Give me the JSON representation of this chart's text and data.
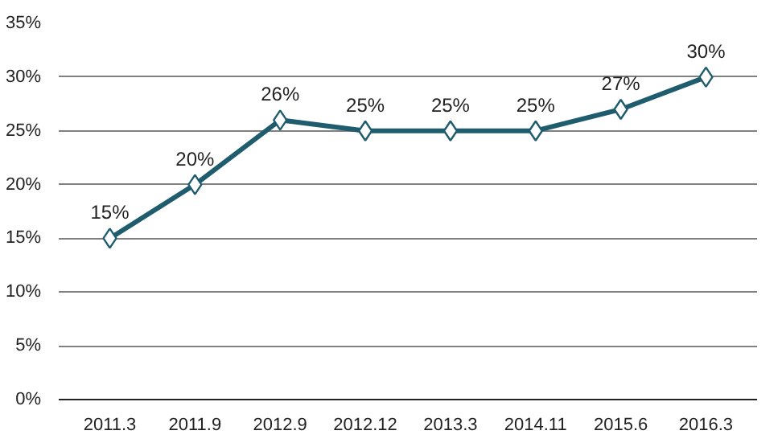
{
  "chart_data": {
    "type": "line",
    "categories": [
      "2011.3",
      "2011.9",
      "2012.9",
      "2012.12",
      "2013.3",
      "2014.11",
      "2015.6",
      "2016.3"
    ],
    "series": [
      {
        "color": "#1f5c6e",
        "values": [
          15,
          20,
          26,
          25,
          25,
          25,
          27,
          30
        ],
        "value_labels": [
          "15%",
          "20%",
          "26%",
          "25%",
          "25%",
          "25%",
          "27%",
          "30%"
        ]
      }
    ],
    "ylim": [
      0,
      35
    ],
    "yticks": [
      {
        "value": 0,
        "label": "0%"
      },
      {
        "value": 5,
        "label": "5%"
      },
      {
        "value": 10,
        "label": "10%"
      },
      {
        "value": 15,
        "label": "15%"
      },
      {
        "value": 20,
        "label": "20%"
      },
      {
        "value": 25,
        "label": "25%"
      },
      {
        "value": 30,
        "label": "30%"
      },
      {
        "value": 35,
        "label": "35%"
      }
    ],
    "grid": "y",
    "marker": "diamond"
  }
}
